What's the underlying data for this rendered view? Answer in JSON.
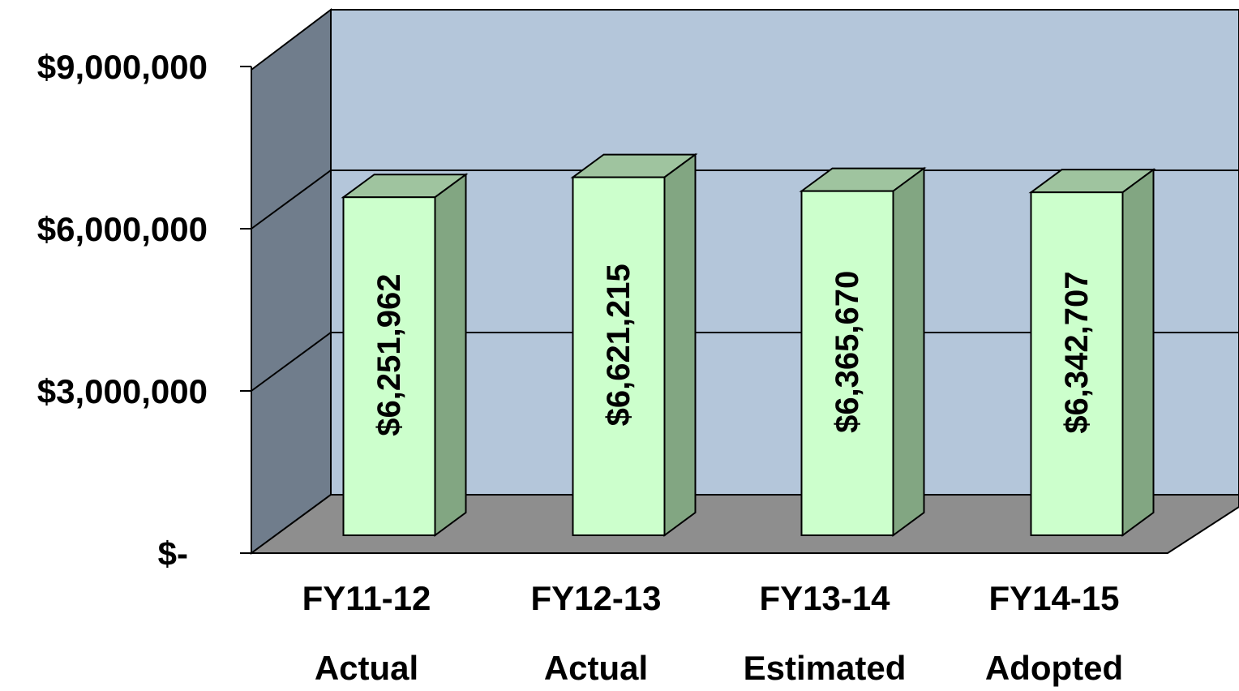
{
  "chart_data": {
    "type": "bar",
    "style": "3d",
    "categories": [
      [
        "FY11-12",
        "Actual"
      ],
      [
        "FY12-13",
        "Actual"
      ],
      [
        "FY13-14",
        "Estimated"
      ],
      [
        "FY14-15",
        "Adopted"
      ]
    ],
    "values": [
      6251962,
      6621215,
      6365670,
      6342707
    ],
    "data_labels": [
      "$6,251,962",
      "$6,621,215",
      "$6,365,670",
      "$6,342,707"
    ],
    "y_ticks": [
      {
        "value": 0,
        "label": "$-"
      },
      {
        "value": 3000000,
        "label": "$3,000,000"
      },
      {
        "value": 6000000,
        "label": "$6,000,000"
      },
      {
        "value": 9000000,
        "label": "$9,000,000"
      }
    ],
    "ylim": [
      0,
      9000000
    ],
    "grid": true,
    "legend": "none"
  },
  "colors": {
    "back_wall": "#b4c6da",
    "side_wall": "#707d8c",
    "floor": "#8e8e8e",
    "bar_front": "#ccffcc",
    "bar_top": "#9fc49f",
    "bar_side": "#82a682",
    "outline": "#000000"
  }
}
